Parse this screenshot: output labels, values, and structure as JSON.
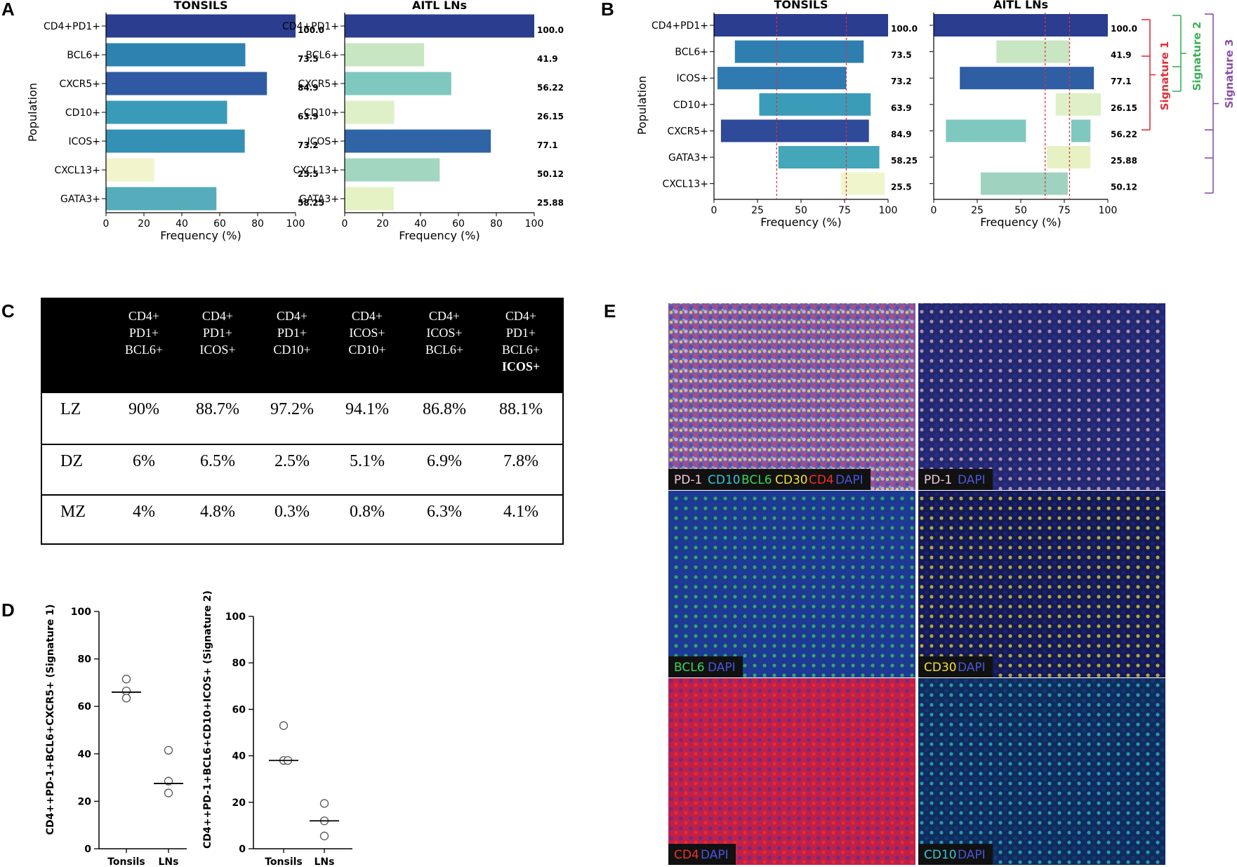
{
  "figure": {
    "panel_letters": [
      "A",
      "B",
      "C",
      "D",
      "E"
    ]
  },
  "chart_data": [
    {
      "id": "A-tonsils",
      "type": "bar",
      "orientation": "horizontal",
      "title": "TONSILS",
      "categories": [
        "CD4+PD1+",
        "BCL6+",
        "CXCR5+",
        "CD10+",
        "ICOS+",
        "CXCL13+",
        "GATA3+"
      ],
      "values": [
        100.0,
        73.5,
        84.9,
        63.9,
        73.2,
        25.5,
        58.25
      ],
      "value_labels": [
        "100.0",
        "73.5",
        "84.9",
        "63.9",
        "73.2",
        "25.5",
        "58.25"
      ],
      "colors": [
        "#2a3d8f",
        "#2e82b0",
        "#2f5aa3",
        "#3a9bb8",
        "#3490b5",
        "#f2f5cc",
        "#56acbb"
      ],
      "xlabel": "Frequency (%)",
      "ylabel": "Population",
      "xlim": [
        0,
        100
      ],
      "xticks": [
        0,
        20,
        40,
        60,
        80,
        100
      ]
    },
    {
      "id": "A-aitl",
      "type": "bar",
      "orientation": "horizontal",
      "title": "AITL LNs",
      "categories": [
        "CD4+PD1+",
        "BCL6+",
        "CXCR5+",
        "CD10+",
        "ICOS+",
        "CXCL13+",
        "GATA3+"
      ],
      "values": [
        100.0,
        41.9,
        56.22,
        26.15,
        77.1,
        50.12,
        25.88
      ],
      "value_labels": [
        "100.0",
        "41.9",
        "56.22",
        "26.15",
        "77.1",
        "50.12",
        "25.88"
      ],
      "colors": [
        "#2a3d8f",
        "#c9e6c3",
        "#7fc8bf",
        "#dff0c8",
        "#2f65a6",
        "#a2d6c0",
        "#e4f2c4"
      ],
      "xlabel": "Frequency (%)",
      "xlim": [
        0,
        100
      ],
      "xticks": [
        0,
        20,
        40,
        60,
        80,
        100
      ]
    },
    {
      "id": "B-tonsils",
      "type": "bar",
      "orientation": "horizontal",
      "subtype": "floating",
      "title": "TONSILS",
      "categories": [
        "CD4+PD1+",
        "BCL6+",
        "ICOS+",
        "CD10+",
        "CXCR5+",
        "GATA3+",
        "CXCL13+"
      ],
      "ranges": [
        [
          0,
          100
        ],
        [
          12,
          86
        ],
        [
          2,
          76
        ],
        [
          26,
          90
        ],
        [
          4,
          89
        ],
        [
          37,
          95
        ],
        [
          73,
          98
        ]
      ],
      "value_labels": [
        "100.0",
        "73.5",
        "73.2",
        "63.9",
        "84.9",
        "58.25",
        "25.5"
      ],
      "colors": [
        "#2a3d8f",
        "#2e7fb0",
        "#2f7ab0",
        "#3a9cb8",
        "#2e4a98",
        "#43a6b9",
        "#f0f5cc"
      ],
      "thresholds": [
        36,
        76
      ],
      "xlabel": "Frequency (%)",
      "ylabel": "Population",
      "xlim": [
        0,
        100
      ],
      "xticks": [
        0,
        25,
        50,
        75,
        100
      ]
    },
    {
      "id": "B-aitl",
      "type": "bar",
      "orientation": "horizontal",
      "subtype": "floating",
      "title": "AITL LNs",
      "segments": [
        [
          [
            0,
            100
          ]
        ],
        [
          [
            36,
            78
          ]
        ],
        [
          [
            15,
            92
          ]
        ],
        [
          [
            70,
            96
          ]
        ],
        [
          [
            7,
            53
          ],
          [
            79,
            90
          ]
        ],
        [
          [
            65,
            90
          ]
        ],
        [
          [
            27,
            77
          ]
        ]
      ],
      "value_labels": [
        "100.0",
        "41.9",
        "77.1",
        "26.15",
        "56.22",
        "25.88",
        "50.12"
      ],
      "colors": [
        "#2a3d8f",
        "#c9e6c3",
        "#2f5ea4",
        "#dff0c8",
        "#7fc8bf",
        "#e6f2c4",
        "#9fd3bf"
      ],
      "thresholds": [
        64,
        78
      ],
      "xlabel": "Frequency (%)",
      "xlim": [
        0,
        100
      ],
      "xticks": [
        0,
        25,
        50,
        75,
        100
      ]
    },
    {
      "id": "D-sig1",
      "type": "scatter",
      "ylabel": "CD4++PD-1+BCL6+CXCR5+ (Signature 1)",
      "categories": [
        "Tonsils",
        "LNs"
      ],
      "points": [
        [
          71.5,
          66.5,
          63.5
        ],
        [
          41.5,
          28.5,
          23.5
        ]
      ],
      "medians": [
        66,
        27.5
      ],
      "ylim": [
        0,
        100
      ],
      "yticks": [
        0,
        20,
        40,
        60,
        80,
        100
      ]
    },
    {
      "id": "D-sig2",
      "type": "scatter",
      "ylabel": "CD4++PD-1+BCL6+CD10+ICOS+ (Signature 2)",
      "categories": [
        "Tonsils",
        "LNs"
      ],
      "points": [
        [
          53,
          38,
          38
        ],
        [
          19.5,
          12,
          5.5
        ]
      ],
      "medians": [
        38,
        12
      ],
      "ylim": [
        0,
        100
      ],
      "yticks": [
        0,
        20,
        40,
        60,
        80,
        100
      ]
    }
  ],
  "signatures": [
    {
      "label": "Signature 1",
      "color": "#e0313a"
    },
    {
      "label": "Signature 2",
      "color": "#3cb055"
    },
    {
      "label": "Signature 3",
      "color": "#8b4fa6"
    }
  ],
  "table_c": {
    "headers": [
      [
        "CD4+",
        "PD1+",
        "BCL6+"
      ],
      [
        "CD4+",
        "PD1+",
        "ICOS+"
      ],
      [
        "CD4+",
        "PD1+",
        "CD10+"
      ],
      [
        "CD4+",
        "ICOS+",
        "CD10+"
      ],
      [
        "CD4+",
        "ICOS+",
        "BCL6+"
      ],
      [
        "CD4+",
        "PD1+",
        "BCL6+",
        "ICOS+"
      ]
    ],
    "rows": [
      {
        "label": "LZ",
        "cells": [
          "90%",
          "88.7%",
          "97.2%",
          "94.1%",
          "86.8%",
          "88.1%"
        ]
      },
      {
        "label": "DZ",
        "cells": [
          "6%",
          "6.5%",
          "2.5%",
          "5.1%",
          "6.9%",
          "7.8%"
        ]
      },
      {
        "label": "MZ",
        "cells": [
          "4%",
          "4.8%",
          "0.3%",
          "0.8%",
          "6.3%",
          "4.1%"
        ]
      }
    ]
  },
  "panel_e": {
    "images": [
      {
        "legend": [
          {
            "t": "PD-1",
            "c": "#f4c9dc"
          },
          {
            "t": "CD10",
            "c": "#34c7d6"
          },
          {
            "t": "BCL6",
            "c": "#3fd35a"
          },
          {
            "t": "CD30",
            "c": "#f2e23a"
          },
          {
            "t": "CD4",
            "c": "#f0302e"
          },
          {
            "t": "DAPI",
            "c": "#4a56d8"
          }
        ]
      },
      {
        "legend": [
          {
            "t": "PD-1",
            "c": "#f4c9dc"
          },
          {
            "t": "DAPI",
            "c": "#4a56d8"
          }
        ]
      },
      {
        "legend": [
          {
            "t": "BCL6",
            "c": "#3fd35a"
          },
          {
            "t": "DAPI",
            "c": "#4a56d8"
          }
        ]
      },
      {
        "legend": [
          {
            "t": "CD30",
            "c": "#f2e23a"
          },
          {
            "t": "DAPI",
            "c": "#4a56d8"
          }
        ]
      },
      {
        "legend": [
          {
            "t": "CD4",
            "c": "#f0302e"
          },
          {
            "t": "DAPI",
            "c": "#4a56d8"
          }
        ]
      },
      {
        "legend": [
          {
            "t": "CD10",
            "c": "#34c7d6"
          },
          {
            "t": "DAPI",
            "c": "#4a56d8"
          }
        ]
      }
    ]
  }
}
